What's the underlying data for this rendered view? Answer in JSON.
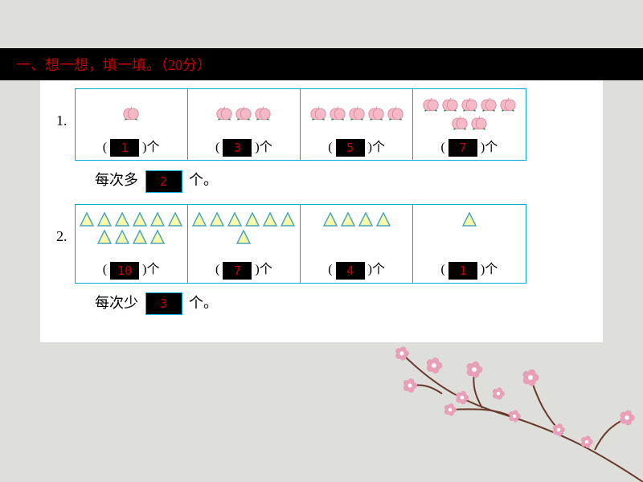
{
  "header": "一、想一想，填一填。（20分）",
  "p1": {
    "num": "1.",
    "cells": [
      {
        "peaches": 1,
        "ans": "1"
      },
      {
        "peaches": 3,
        "ans": "3"
      },
      {
        "peaches": 5,
        "ans": "5"
      },
      {
        "peaches": 7,
        "ans": "7"
      }
    ],
    "unit_open": "( ",
    "unit_close": " )个",
    "summary_pre": "每次多",
    "summary_ans": "2",
    "summary_post": "个。"
  },
  "p2": {
    "num": "2.",
    "cells": [
      {
        "tris": 10,
        "ans": "10"
      },
      {
        "tris": 7,
        "ans": "7"
      },
      {
        "tris": 4,
        "ans": "4"
      },
      {
        "tris": 1,
        "ans": "1"
      }
    ],
    "unit_open": "( ",
    "unit_close": " )个",
    "summary_pre": "每次少",
    "summary_ans": "3",
    "summary_post": "个。"
  },
  "colors": {
    "peach_fill": "#f4b9c4",
    "peach_stroke": "#d68aa0",
    "leaf": "#2e8b3e",
    "tri_fill": "#fcf9a8",
    "tri_stroke": "#4aa6c2",
    "branch": "#6b3a2e",
    "blossom": "#e8a0b8"
  }
}
